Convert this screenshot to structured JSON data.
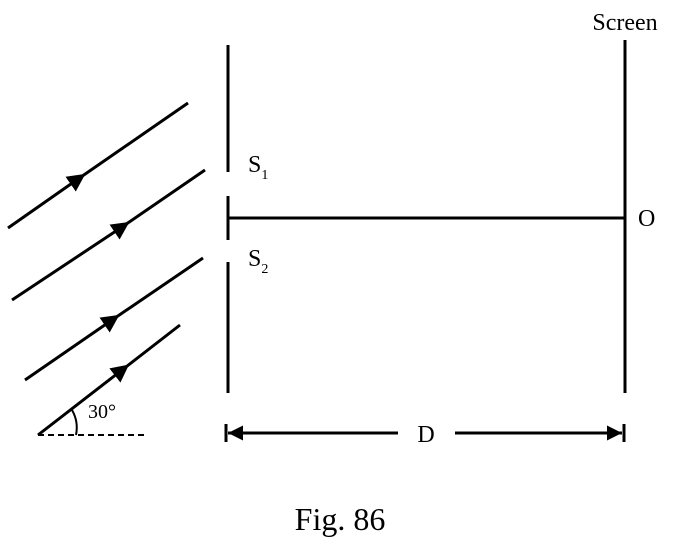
{
  "screen_label": "Screen",
  "slit_1": {
    "main": "S",
    "sub": "1"
  },
  "slit_2": {
    "main": "S",
    "sub": "2"
  },
  "center_point": "O",
  "angle_label": "30°",
  "distance_label": "D",
  "caption": "Fig. 86"
}
